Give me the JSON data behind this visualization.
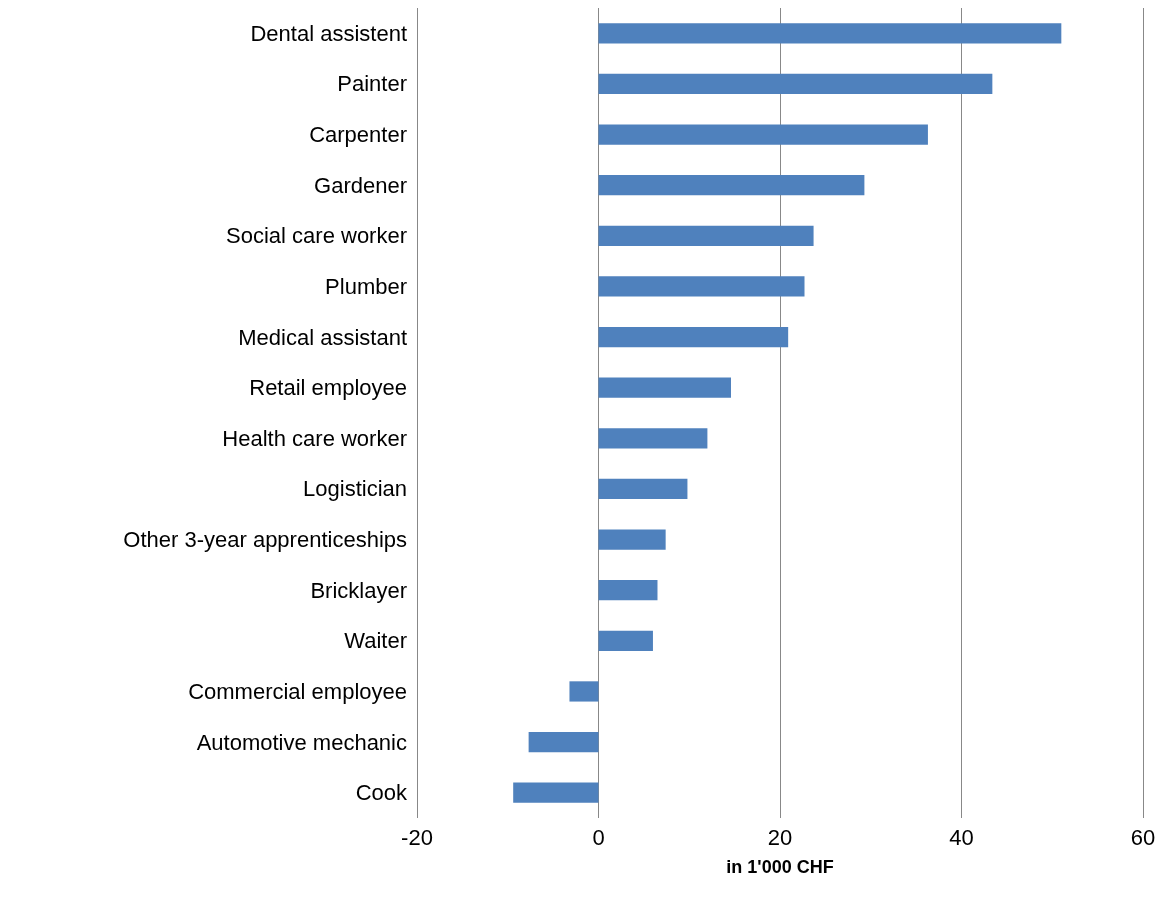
{
  "chart_data": {
    "type": "bar",
    "orientation": "horizontal",
    "categories": [
      "Dental assistent",
      "Painter",
      "Carpenter",
      "Gardener",
      "Social care worker",
      "Plumber",
      "Medical assistant",
      "Retail employee",
      "Health care worker",
      "Logistician",
      "Other 3-year apprenticeships",
      "Bricklayer",
      "Waiter",
      "Commercial employee",
      "Automotive mechanic",
      "Cook"
    ],
    "values": [
      51.0,
      43.4,
      36.3,
      29.3,
      23.7,
      22.7,
      20.9,
      14.6,
      12.0,
      9.8,
      7.4,
      6.5,
      6.0,
      -3.2,
      -7.7,
      -9.4
    ],
    "color": "#4f81bd",
    "xlabel": "in 1'000 CHF",
    "xlim": [
      -20,
      60
    ],
    "xticks": [
      -20,
      0,
      20,
      40,
      60
    ],
    "grid": "x"
  }
}
